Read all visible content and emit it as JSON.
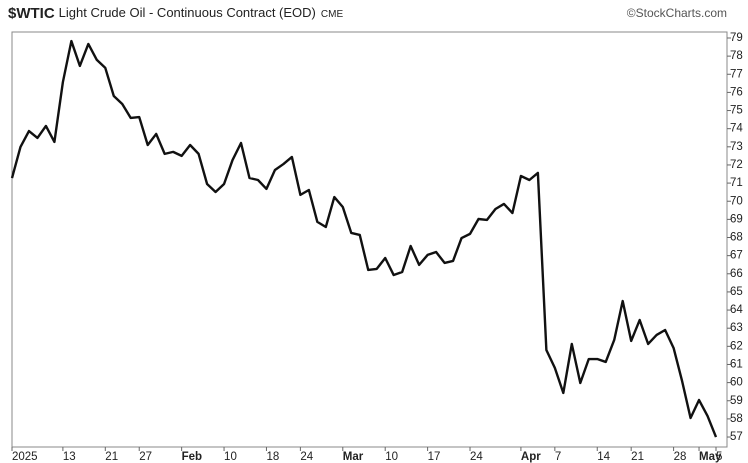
{
  "chart_data": {
    "type": "line",
    "symbol": "$WTIC",
    "title": "Light Crude Oil - Continuous Contract (EOD)",
    "exchange": "CME",
    "source": "©StockCharts.com",
    "color": "#111111",
    "categories": [
      "2025",
      null,
      null,
      null,
      null,
      null,
      "13",
      null,
      null,
      null,
      null,
      "21",
      null,
      null,
      null,
      "27",
      null,
      null,
      null,
      null,
      "Feb",
      null,
      null,
      null,
      null,
      "10",
      null,
      null,
      null,
      null,
      "18",
      null,
      null,
      null,
      "24",
      null,
      null,
      null,
      null,
      "Mar",
      null,
      null,
      null,
      null,
      "10",
      null,
      null,
      null,
      null,
      "17",
      null,
      null,
      null,
      null,
      "24",
      null,
      null,
      null,
      null,
      null,
      "Apr",
      null,
      null,
      null,
      "7",
      null,
      null,
      null,
      null,
      "14",
      null,
      null,
      null,
      "21",
      null,
      null,
      null,
      null,
      "28",
      null,
      null,
      "May",
      null,
      "5"
    ],
    "values": [
      71.28,
      72.99,
      73.87,
      73.49,
      74.15,
      73.27,
      76.57,
      78.83,
      77.46,
      78.67,
      77.79,
      77.35,
      75.8,
      75.36,
      74.59,
      74.64,
      73.1,
      73.71,
      72.61,
      72.72,
      72.5,
      73.1,
      72.61,
      70.95,
      70.51,
      70.95,
      72.27,
      73.21,
      71.28,
      71.17,
      70.68,
      71.72,
      72.05,
      72.44,
      70.35,
      70.62,
      68.86,
      68.58,
      70.23,
      69.68,
      68.25,
      68.14,
      66.21,
      66.27,
      66.87,
      65.93,
      66.1,
      67.53,
      66.49,
      67.04,
      67.2,
      66.6,
      66.71,
      67.97,
      68.2,
      69.02,
      68.97,
      69.57,
      69.85,
      69.35,
      71.39,
      71.17,
      71.56,
      61.8,
      60.81,
      59.43,
      62.13,
      59.98,
      61.3,
      61.3,
      61.14,
      62.35,
      64.5,
      62.3,
      63.45,
      62.13,
      62.63,
      62.9,
      61.91,
      60.09,
      58.05,
      59.04,
      58.16,
      57.0
    ],
    "ylim": [
      56.45,
      79.33
    ],
    "yticks": [
      57,
      58,
      59,
      60,
      61,
      62,
      63,
      64,
      65,
      66,
      67,
      68,
      69,
      70,
      71,
      72,
      73,
      74,
      75,
      76,
      77,
      78,
      79
    ],
    "grid": false
  }
}
